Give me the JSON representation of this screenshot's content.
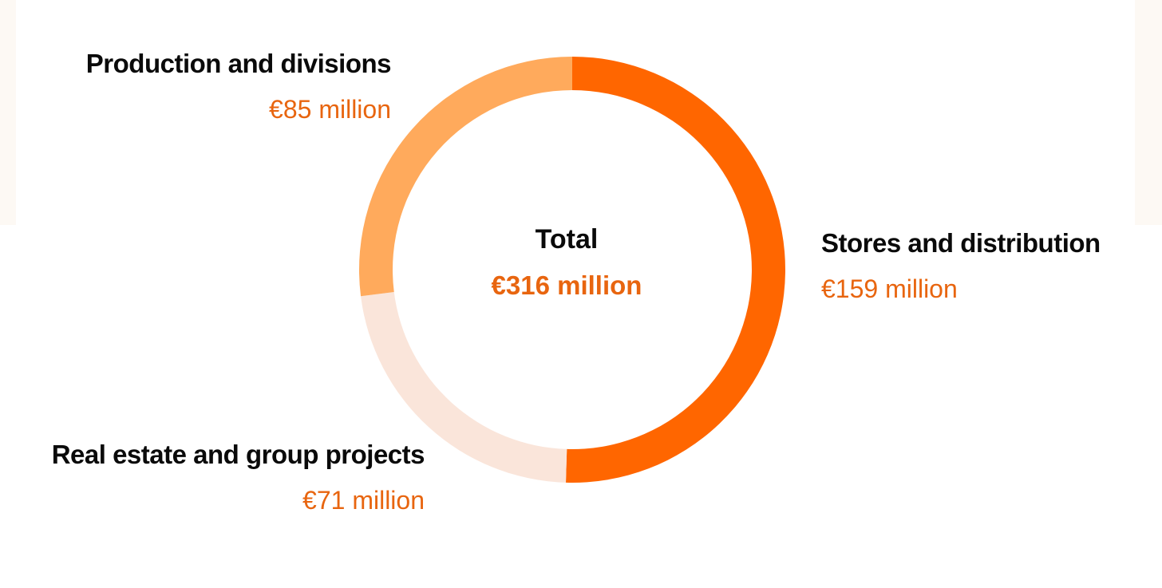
{
  "colors": {
    "stores": "#ff6600",
    "production": "#ffaa5c",
    "realestate": "#fae5da",
    "value_text": "#e8650f",
    "background_strip": "#fdf9f4"
  },
  "center": {
    "label": "Total",
    "value": "€316 million"
  },
  "chart_data": {
    "type": "pie",
    "variant": "donut",
    "unit": "€ million",
    "total": 316,
    "slices": [
      {
        "name": "Stores and distribution",
        "value": 159,
        "value_label": "€159 million",
        "color_key": "stores"
      },
      {
        "name": "Real estate and group projects",
        "value": 71,
        "value_label": "€71 million",
        "color_key": "realestate"
      },
      {
        "name": "Production and divisions",
        "value": 85,
        "value_label": "€85 million",
        "color_key": "production"
      }
    ]
  }
}
